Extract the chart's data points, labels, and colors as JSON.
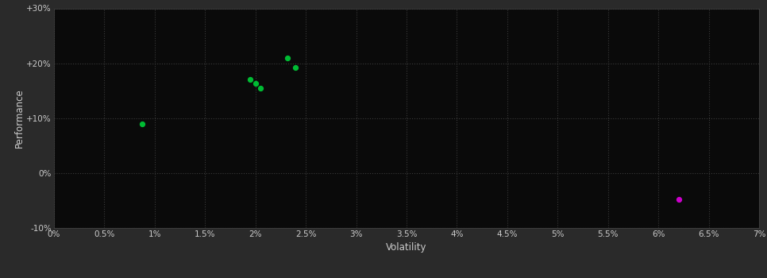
{
  "background_color": "#2a2a2a",
  "plot_bg_color": "#0a0a0a",
  "grid_color": "#3a3a3a",
  "grid_linestyle": ":",
  "xlabel": "Volatility",
  "ylabel": "Performance",
  "xlim": [
    0,
    0.07
  ],
  "ylim": [
    -0.1,
    0.3
  ],
  "xticks": [
    0.0,
    0.005,
    0.01,
    0.015,
    0.02,
    0.025,
    0.03,
    0.035,
    0.04,
    0.045,
    0.05,
    0.055,
    0.06,
    0.065,
    0.07
  ],
  "xtick_labels": [
    "0%",
    "0.5%",
    "1%",
    "1.5%",
    "2%",
    "2.5%",
    "3%",
    "3.5%",
    "4%",
    "4.5%",
    "5%",
    "5.5%",
    "6%",
    "6.5%",
    "7%"
  ],
  "yticks": [
    -0.1,
    0.0,
    0.1,
    0.2,
    0.3
  ],
  "ytick_labels": [
    "-10%",
    "0%",
    "+10%",
    "+20%",
    "+30%"
  ],
  "green_points": [
    [
      0.0088,
      0.09
    ],
    [
      0.0195,
      0.17
    ],
    [
      0.02,
      0.163
    ],
    [
      0.0205,
      0.155
    ],
    [
      0.0232,
      0.21
    ],
    [
      0.024,
      0.192
    ]
  ],
  "magenta_points": [
    [
      0.062,
      -0.048
    ]
  ],
  "green_color": "#00bb33",
  "magenta_color": "#cc00cc",
  "point_size": 18,
  "text_color": "#cccccc",
  "tick_fontsize": 7.5,
  "label_fontsize": 8.5
}
